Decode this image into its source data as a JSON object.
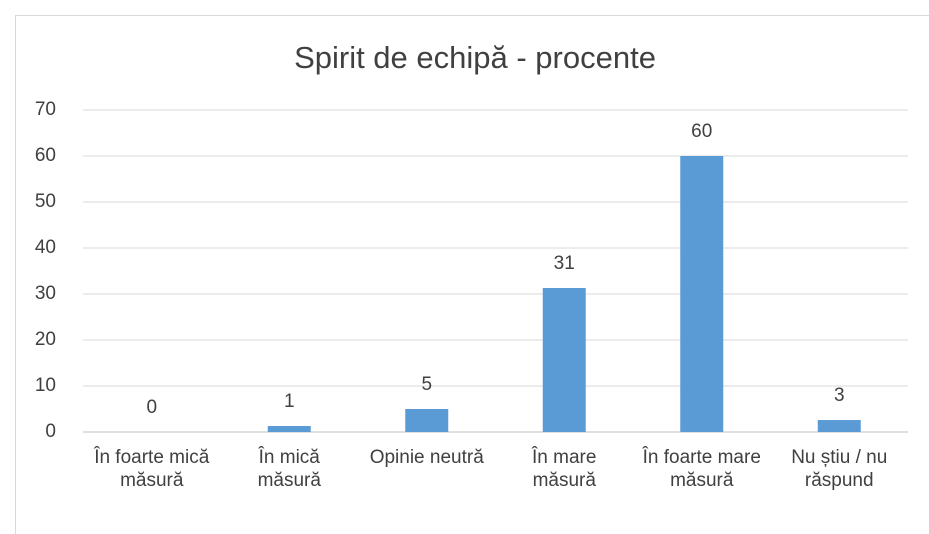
{
  "chart_data": {
    "type": "bar",
    "title": "Spirit de echipă - procente",
    "categories": [
      "În foarte mică măsură",
      "În mică măsură",
      "Opinie neutră",
      "În mare măsură",
      "În foarte mare măsură",
      "Nu știu / nu răspund"
    ],
    "values": [
      0,
      1.3,
      5,
      31.3,
      60,
      2.6
    ],
    "value_labels": [
      "0",
      "1",
      "5",
      "31",
      "60",
      "3"
    ],
    "color": "#5b9bd5",
    "ylim": [
      0,
      70
    ],
    "yticks": [
      0,
      10,
      20,
      30,
      40,
      50,
      60,
      70
    ],
    "grid": true
  }
}
